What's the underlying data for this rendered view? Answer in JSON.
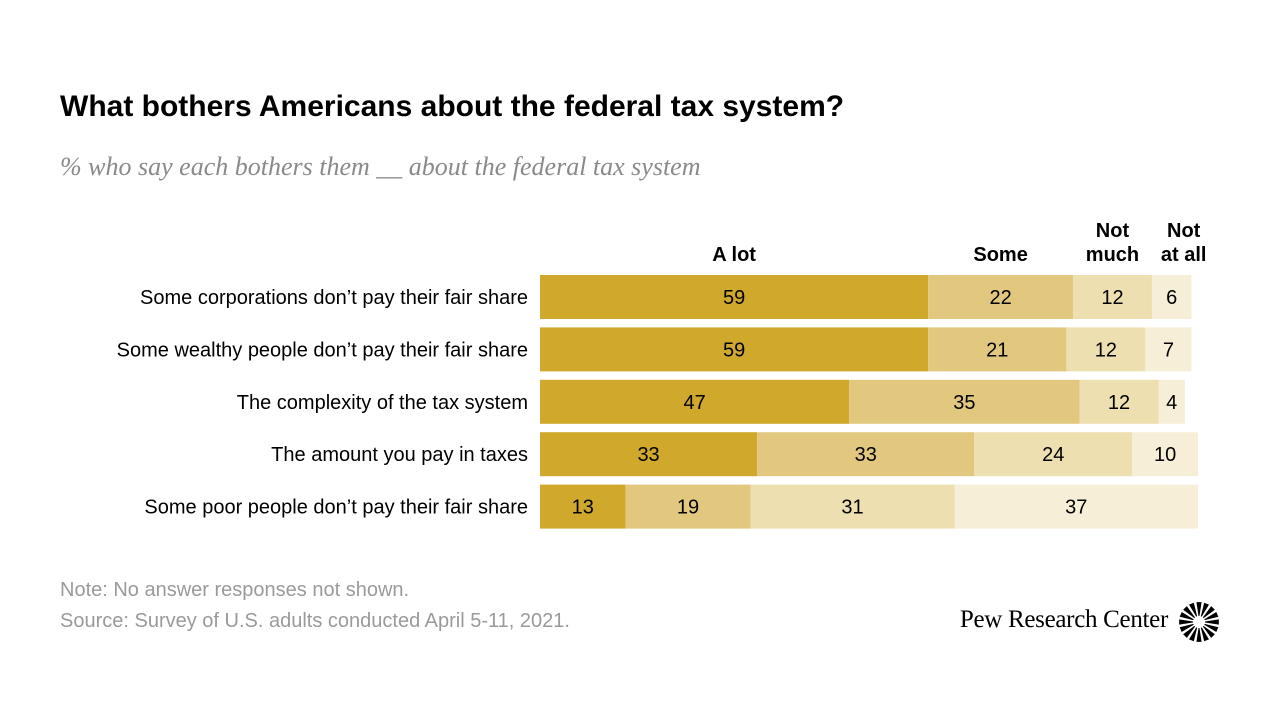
{
  "title": "What bothers Americans about the federal tax system?",
  "subtitle": "% who say each bothers them __ about the federal tax system",
  "note": "Note: No answer responses not shown.",
  "source": "Source: Survey of U.S. adults conducted April 5-11, 2021.",
  "brand": "Pew Research Center",
  "colors": {
    "a_lot": "#cfa82c",
    "some": "#e2c87f",
    "not_much": "#eedfb1",
    "not_at_all": "#f6eed6",
    "text": "#000000",
    "muted": "#9a9a9a"
  },
  "chart_data": {
    "type": "bar",
    "orientation": "horizontal",
    "stacked": true,
    "title": "What bothers Americans about the federal tax system?",
    "subtitle": "% who say each bothers them __ about the federal tax system",
    "categories": [
      "Some corporations don’t pay their fair share",
      "Some wealthy people don’t pay their fair share",
      "The complexity of the tax system",
      "The amount you pay in taxes",
      "Some poor people don’t pay their fair share"
    ],
    "series": [
      {
        "name": "A lot",
        "header_lines": [
          "A lot"
        ],
        "values": [
          59,
          59,
          47,
          33,
          13
        ]
      },
      {
        "name": "Some",
        "header_lines": [
          "Some"
        ],
        "values": [
          22,
          21,
          35,
          33,
          19
        ]
      },
      {
        "name": "Not much",
        "header_lines": [
          "Not",
          "much"
        ],
        "values": [
          12,
          12,
          12,
          24,
          31
        ]
      },
      {
        "name": "Not at all",
        "header_lines": [
          "Not",
          "at all"
        ],
        "values": [
          6,
          7,
          4,
          10,
          37
        ]
      }
    ],
    "xlim": [
      0,
      100
    ],
    "unit": "%"
  }
}
